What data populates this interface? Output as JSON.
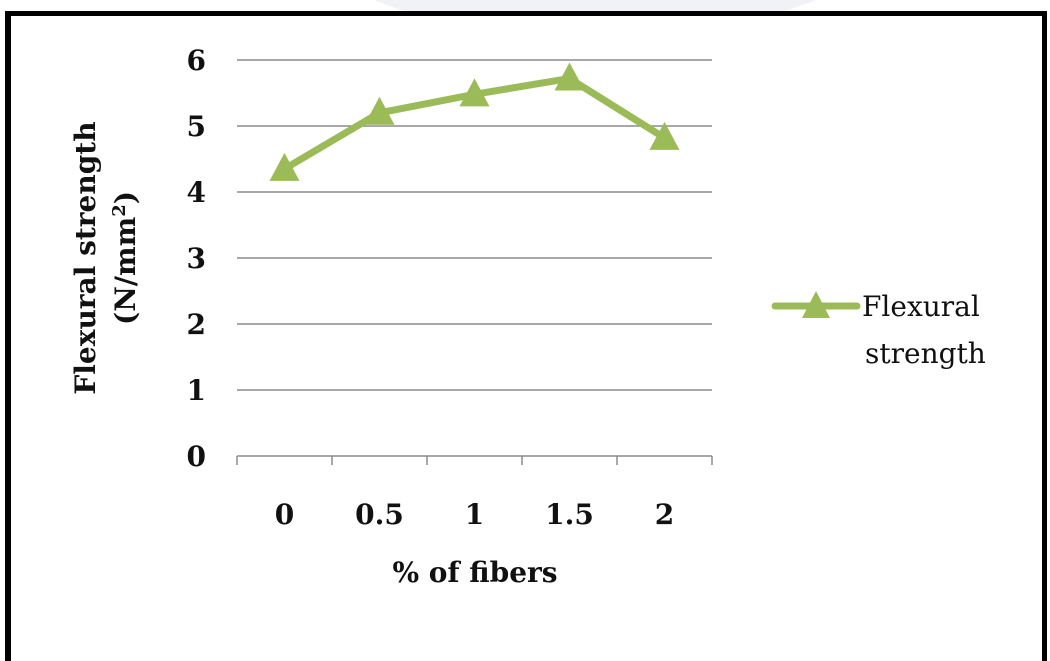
{
  "chart_data": {
    "type": "line",
    "title": "",
    "xlabel": "% of fibers",
    "ylabel_line1": "Flexural strength",
    "ylabel_line2": "(N/mm",
    "ylabel_sup": "2",
    "ylabel_close": ")",
    "categories": [
      "0",
      "0.5",
      "1",
      "1.5",
      "2"
    ],
    "y_ticks": [
      "0",
      "1",
      "2",
      "3",
      "4",
      "5",
      "6"
    ],
    "ylim": [
      0,
      6
    ],
    "grid": "horizontal",
    "legend_position": "right",
    "series": [
      {
        "name": "Flexural strength",
        "name_line1": "Flexural",
        "name_line2": "strength",
        "color": "#9bbb59",
        "marker": "triangle",
        "values": [
          4.35,
          5.2,
          5.48,
          5.72,
          4.82
        ]
      }
    ]
  }
}
